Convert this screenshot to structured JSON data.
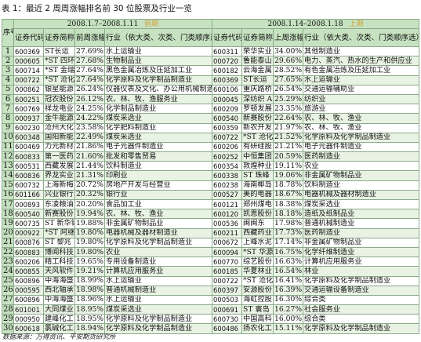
{
  "caption": "表 1：最近 2 周周涨幅排名前 30 位股票及行业一览",
  "source": "数据来源：万得资讯、平安期货研究所",
  "header": {
    "seq": "序号",
    "left_period": "2008.1.7–2008.1.11",
    "left_period_note": "前期",
    "right_period": "2008.1.14–2008.1.18",
    "right_period_note": "上期",
    "cols": [
      "证券代码",
      "证券简称",
      "前周涨幅",
      "行业（依大类、次类、门类顺序选）",
      "证券代码",
      "证券简称",
      "上周涨幅",
      "行业（依大类、次类、门类顺序选）"
    ]
  },
  "rows": [
    {
      "n": "1",
      "c1": "600369",
      "s1": "ST长运",
      "p1": "27.69%",
      "i1": "水上运输业",
      "c2": "600311",
      "s2": "荣华实业",
      "p2": "34.00%",
      "i2": "其他制造业"
    },
    {
      "n": "2",
      "c1": "000605",
      "s1": "*ST 四环",
      "p1": "27.68%",
      "i1": "生物制品业",
      "c2": "000720",
      "s2": "鲁能泰山",
      "p2": "29.66%",
      "i2": "电力、蒸汽、热水的生产和供应业"
    },
    {
      "n": "3",
      "c1": "600714",
      "s1": "*ST 金瑞",
      "p1": "27.64%",
      "i1": "黑色金属冶炼及压延加工业",
      "c2": "600182",
      "s2": "云海金属",
      "p2": "28.52%",
      "i2": "有色金属冶炼及压延加工业"
    },
    {
      "n": "4",
      "c1": "000722",
      "s1": "*ST 沧化",
      "p1": "27.64%",
      "i1": "化学原料及化学制品制造业",
      "c2": "600369",
      "s2": "ST长运",
      "p2": "27.65%",
      "i2": "水上运输业"
    },
    {
      "n": "5",
      "c1": "000862",
      "s1": "银星能源",
      "p1": "26.24%",
      "i1": "仪器仪表及文化、办公用机械制造业",
      "c2": "600106",
      "s2": "重庆路桥",
      "p2": "26.54%",
      "i2": "交通运输辅助业"
    },
    {
      "n": "6",
      "c1": "600251",
      "s1": "冠农股份",
      "p1": "26.12%",
      "i1": "农、林、牧、渔服务业",
      "c2": "000045",
      "s2": "深纺织 A",
      "p2": "25.29%",
      "i2": "纺织业"
    },
    {
      "n": "7",
      "c1": "600769",
      "s1": "祥龙电业",
      "p1": "24.25%",
      "i1": "化学制品制造业",
      "c2": "600209",
      "s2": "罗顿发展",
      "p2": "23.35%",
      "i2": "旅游业"
    },
    {
      "n": "8",
      "c1": "000937",
      "s1": "金牛能源",
      "p1": "24.22%",
      "i1": "煤炭采选业",
      "c2": "600540",
      "s2": "新赛股份",
      "p2": "22.64%",
      "i2": "农、林、牧、渔业"
    },
    {
      "n": "9",
      "c1": "600230",
      "s1": "沧州大化",
      "p1": "23.58%",
      "i1": "化学肥料制造业",
      "c2": "600359",
      "s2": "新农开发",
      "p2": "21.97%",
      "i2": "农、林、牧、渔业"
    },
    {
      "n": "10",
      "c1": "600348",
      "s1": "国阳新能",
      "p1": "22.49%",
      "i1": "煤炭采选业",
      "c2": "600722",
      "s2": "*ST 沧化",
      "p2": "21.52%",
      "i2": "化学原料及化学制品制造业"
    },
    {
      "n": "11",
      "c1": "600469",
      "s1": "力元新材",
      "p1": "21.86%",
      "i1": "电子元器件制造业",
      "c2": "600206",
      "s2": "有研硅股",
      "p2": "21.21%",
      "i2": "电子元器件制造业"
    },
    {
      "n": "12",
      "c1": "600833",
      "s1": "第一医药",
      "p1": "21.60%",
      "i1": "批发和零售贸易",
      "c2": "600252",
      "s2": "中恒集团",
      "p2": "20.59%",
      "i2": "医药制造业"
    },
    {
      "n": "13",
      "c1": "600531",
      "s1": "西藏发展",
      "p1": "21.44%",
      "i1": "饮料制造业",
      "c2": "600354",
      "s2": "敦煌种业",
      "p2": "19.11%",
      "i2": "农业"
    },
    {
      "n": "14",
      "c1": "600836",
      "s1": "界龙实业",
      "p1": "21.31%",
      "i1": "印刷业",
      "c2": "600338",
      "s2": "ST 珠峰",
      "p2": "19.06%",
      "i2": "非金属矿物制品业"
    },
    {
      "n": "15",
      "c1": "600732",
      "s1": "上海新梅",
      "p1": "20.72%",
      "i1": "房地产开发与经营业",
      "c2": "600238",
      "s2": "海南椰岛",
      "p2": "18.78%",
      "i2": "饮料制造业"
    },
    {
      "n": "16",
      "c1": "601166",
      "s1": "兴业银行",
      "p1": "20.32%",
      "i1": "银行业",
      "c2": "000527",
      "s2": "美的电器",
      "p2": "18.67%",
      "i2": "电器机械及器材制造业"
    },
    {
      "n": "17",
      "c1": "000893",
      "s1": "东凌粮油",
      "p1": "20.20%",
      "i1": "食品加工业",
      "c2": "600121",
      "s2": "郑州煤电",
      "p2": "18.38%",
      "i2": "煤炭采选业"
    },
    {
      "n": "18",
      "c1": "600540",
      "s1": "新赛股份",
      "p1": "19.94%",
      "i1": "农、林、牧、渔业",
      "c2": "600120",
      "s2": "凯恩股份",
      "p2": "18.18%",
      "i2": "造纸及纸制品业"
    },
    {
      "n": "19",
      "c1": "600735",
      "s1": "ST 新华锦",
      "p1": "19.88%",
      "i1": "非金属矿物制品业",
      "c2": "000536",
      "s2": "闽闽东",
      "p2": "17.98%",
      "i2": "普通机械制造业"
    },
    {
      "n": "20",
      "c1": "000922",
      "s1": "*ST 阿继",
      "p1": "19.80%",
      "i1": "电器机械及器材制造业",
      "c2": "600211",
      "s2": "西藏药业",
      "p2": "17.73%",
      "i2": "医药制造业"
    },
    {
      "n": "21",
      "c1": "600876",
      "s1": "ST 黎兆",
      "p1": "19.80%",
      "i1": "化学原料及化学制品制造业",
      "c2": "000672",
      "s2": "上峰水泥",
      "p2": "17.14%",
      "i2": "非金属矿物制品业"
    },
    {
      "n": "22",
      "c1": "600883",
      "s1": "博闻科技",
      "p1": "19.80%",
      "i1": "农业",
      "c2": "600094",
      "s2": "*ST 华源",
      "p2": "16.75%",
      "i2": "化学纤维制造业"
    },
    {
      "n": "23",
      "c1": "600206",
      "s1": "精工科技",
      "p1": "19.65%",
      "i1": "专用设备制造业",
      "c2": "600770",
      "s2": "综艺股份",
      "p2": "16.63%",
      "i2": "计算机应用服务业"
    },
    {
      "n": "24",
      "c1": "600855",
      "s1": "天风软件",
      "p1": "19.21%",
      "i1": "计算机应用服务业",
      "c2": "600185",
      "s2": "华夏林业",
      "p2": "16.54%",
      "i2": "林业"
    },
    {
      "n": "25",
      "c1": "600896",
      "s1": "中海海盛",
      "p1": "18.99%",
      "i1": "水上运输业",
      "c2": "000722",
      "s2": "*ST 沧化",
      "p2": "16.41%",
      "i2": "化学原料及化学制品制造业"
    },
    {
      "n": "26",
      "c1": "000595",
      "s1": "西北轴承",
      "p1": "18.98%",
      "i1": "普通机械制造业",
      "c2": "600397",
      "s2": "安源股份",
      "p2": "16.39%",
      "i2": "交通运输设备制造业"
    },
    {
      "n": "27",
      "c1": "600896",
      "s1": "中海海盛",
      "p1": "18.96%",
      "i1": "水上运输业",
      "c2": "000503",
      "s2": "海虹控股",
      "p2": "16.30%",
      "i2": "综合类"
    },
    {
      "n": "28",
      "c1": "601001",
      "s1": "大同煤业",
      "p1": "18.95%",
      "i1": "煤炭采选业",
      "c2": "000691",
      "s2": "ST 寰岛",
      "p2": "16.27%",
      "i2": "社会服务业"
    },
    {
      "n": "29",
      "c1": "000950",
      "s1": "建峰化工",
      "p1": "18.95%",
      "i1": "化学原料及化学制品制造业",
      "c2": "600730",
      "s2": "中国高科",
      "p2": "16.00%",
      "i2": "综合类"
    },
    {
      "n": "30",
      "c1": "600618",
      "s1": "氯碱化工",
      "p1": "18.94%",
      "i1": "化学原料及化学制品制造业",
      "c2": "600486",
      "s2": "扬农化工",
      "p2": "15.11%",
      "i2": "化学原料及化学制品制造业"
    }
  ]
}
